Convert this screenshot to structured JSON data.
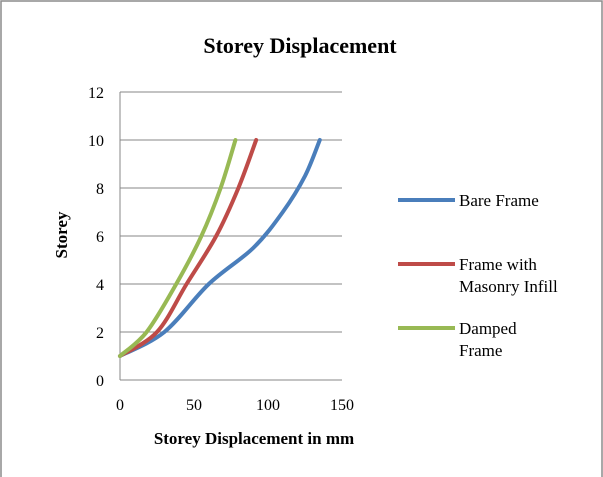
{
  "chart_data": {
    "type": "line",
    "title": "Storey Displacement",
    "xlabel": "Storey Displacement in mm",
    "ylabel": "Storey",
    "xlim": [
      0,
      150
    ],
    "ylim": [
      0,
      12
    ],
    "x_ticks": [
      "0",
      "50",
      "100",
      "150"
    ],
    "y_ticks": [
      "0",
      "2",
      "4",
      "6",
      "8",
      "10",
      "12"
    ],
    "grid": "horizontal",
    "legend_position": "right",
    "series": [
      {
        "name": "Bare Frame",
        "color": "#4a7ebb",
        "points": [
          [
            0,
            1
          ],
          [
            30,
            2
          ],
          [
            60,
            4
          ],
          [
            90,
            5.5
          ],
          [
            110,
            7
          ],
          [
            125,
            8.5
          ],
          [
            135,
            10
          ]
        ]
      },
      {
        "name": "Frame with Masonry Infill",
        "legend_lines": [
          "Frame with",
          "Masonry Infill"
        ],
        "color": "#be4b48",
        "points": [
          [
            0,
            1
          ],
          [
            25,
            2
          ],
          [
            45,
            4
          ],
          [
            65,
            6
          ],
          [
            80,
            8
          ],
          [
            92,
            10
          ]
        ]
      },
      {
        "name": "Damped Frame",
        "legend_lines": [
          "Damped",
          "Frame"
        ],
        "color": "#98b954",
        "points": [
          [
            0,
            1
          ],
          [
            18,
            2
          ],
          [
            38,
            4
          ],
          [
            55,
            6
          ],
          [
            68,
            8
          ],
          [
            78,
            10
          ]
        ]
      }
    ]
  }
}
